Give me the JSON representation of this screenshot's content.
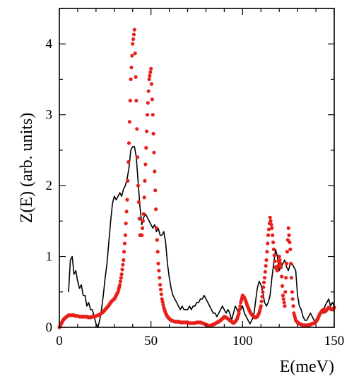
{
  "chart_data": {
    "type": "line",
    "title": "",
    "xlabel": "E(meV)",
    "ylabel": "Z(E) (arb. units)",
    "xlim": [
      0,
      150
    ],
    "ylim": [
      0,
      4.5
    ],
    "xticks": [
      0,
      50,
      100,
      150
    ],
    "yticks": [
      0,
      1,
      2,
      3,
      4
    ],
    "grid": false,
    "legend": "none",
    "series": [
      {
        "style": "line",
        "color": "#000000",
        "x": [
          5,
          6,
          7,
          8,
          9,
          10,
          11,
          12,
          13,
          14,
          15,
          16,
          17,
          18,
          19,
          20,
          21,
          22,
          23,
          24,
          25,
          26,
          27,
          28,
          29,
          30,
          31,
          32,
          33,
          34,
          35,
          36,
          37,
          38,
          39,
          40,
          41,
          42,
          43,
          44,
          45,
          46,
          47,
          48,
          49,
          50,
          51,
          52,
          53,
          54,
          55,
          56,
          57,
          58,
          59,
          60,
          61,
          62,
          63,
          64,
          65,
          66,
          67,
          68,
          69,
          70,
          71,
          72,
          73,
          74,
          75,
          76,
          77,
          78,
          79,
          80,
          81,
          82,
          83,
          84,
          85,
          86,
          87,
          88,
          89,
          90,
          91,
          92,
          93,
          94,
          95,
          96,
          97,
          98,
          99,
          100,
          101,
          102,
          103,
          104,
          105,
          106,
          107,
          108,
          109,
          110,
          111,
          112,
          113,
          114,
          115,
          116,
          117,
          118,
          119,
          120,
          121,
          122,
          123,
          124,
          125,
          126,
          127,
          128,
          129,
          130,
          131,
          132,
          133,
          134,
          135,
          136,
          137,
          138,
          139,
          140,
          141,
          142,
          143,
          144,
          145,
          146,
          147,
          148,
          149,
          150
        ],
        "y": [
          0.5,
          0.95,
          1.0,
          0.75,
          0.8,
          0.65,
          0.55,
          0.6,
          0.45,
          0.45,
          0.3,
          0.35,
          0.25,
          0.25,
          0.15,
          0.05,
          0.0,
          0.1,
          0.25,
          0.45,
          0.7,
          0.9,
          1.2,
          1.5,
          1.75,
          1.85,
          1.8,
          1.85,
          1.9,
          1.85,
          1.95,
          2.0,
          2.1,
          2.25,
          2.5,
          2.55,
          2.55,
          2.4,
          2.05,
          1.7,
          1.45,
          1.55,
          1.6,
          1.55,
          1.5,
          1.45,
          1.4,
          1.45,
          1.35,
          1.4,
          1.3,
          1.3,
          1.35,
          1.2,
          0.9,
          0.7,
          0.55,
          0.45,
          0.4,
          0.35,
          0.3,
          0.25,
          0.3,
          0.25,
          0.25,
          0.25,
          0.3,
          0.25,
          0.3,
          0.3,
          0.35,
          0.35,
          0.4,
          0.4,
          0.45,
          0.4,
          0.35,
          0.3,
          0.25,
          0.2,
          0.2,
          0.15,
          0.2,
          0.25,
          0.3,
          0.25,
          0.2,
          0.25,
          0.2,
          0.1,
          0.2,
          0.3,
          0.25,
          0.2,
          0.25,
          0.3,
          0.2,
          0.15,
          0.1,
          0.05,
          0.1,
          0.15,
          0.35,
          0.55,
          0.65,
          0.6,
          0.5,
          0.35,
          0.3,
          0.35,
          0.45,
          0.7,
          0.9,
          1.1,
          1.0,
          0.8,
          0.85,
          0.9,
          0.95,
          0.85,
          0.8,
          0.9,
          0.9,
          0.85,
          0.8,
          0.45,
          0.3,
          0.25,
          0.15,
          0.1,
          0.1,
          0.15,
          0.2,
          0.15,
          0.1,
          0.05,
          0.15,
          0.2,
          0.25,
          0.2,
          0.3,
          0.35,
          0.4,
          0.3,
          0.35,
          0.3
        ]
      },
      {
        "style": "dots",
        "color": "#e8201a",
        "x": [
          0,
          1,
          2,
          3,
          4,
          5,
          6,
          7,
          8,
          9,
          10,
          11,
          12,
          13,
          14,
          15,
          16,
          17,
          18,
          19,
          20,
          21,
          22,
          23,
          24,
          25,
          26,
          27,
          28,
          29,
          30,
          31,
          32,
          33,
          34,
          35,
          36,
          37,
          38,
          39,
          40,
          41,
          42,
          43,
          44,
          45,
          46,
          47,
          48,
          49,
          50,
          51,
          52,
          53,
          54,
          55,
          56,
          57,
          58,
          59,
          60,
          61,
          62,
          63,
          64,
          65,
          66,
          67,
          68,
          69,
          70,
          71,
          72,
          73,
          74,
          75,
          76,
          77,
          78,
          79,
          80,
          81,
          82,
          83,
          84,
          85,
          86,
          87,
          88,
          89,
          90,
          91,
          92,
          93,
          94,
          95,
          96,
          97,
          98,
          99,
          100,
          101,
          102,
          103,
          104,
          105,
          106,
          107,
          108,
          109,
          110,
          111,
          112,
          113,
          114,
          115,
          116,
          117,
          118,
          119,
          120,
          121,
          122,
          123,
          124,
          125,
          126,
          127,
          128,
          129,
          130,
          131,
          132,
          133,
          134,
          135,
          136,
          137,
          138,
          139,
          140,
          141,
          142,
          143,
          144,
          145,
          146,
          147,
          148,
          149,
          150
        ],
        "y": [
          0.0,
          0.05,
          0.1,
          0.13,
          0.15,
          0.17,
          0.17,
          0.17,
          0.17,
          0.16,
          0.16,
          0.15,
          0.15,
          0.15,
          0.15,
          0.15,
          0.14,
          0.14,
          0.15,
          0.15,
          0.16,
          0.17,
          0.18,
          0.2,
          0.22,
          0.25,
          0.28,
          0.31,
          0.35,
          0.38,
          0.4,
          0.45,
          0.5,
          0.6,
          0.75,
          0.95,
          1.3,
          1.8,
          2.6,
          3.5,
          4.0,
          4.2,
          3.2,
          2.0,
          1.3,
          1.3,
          1.6,
          2.3,
          3.0,
          3.5,
          3.65,
          3.0,
          2.2,
          1.4,
          0.9,
          0.6,
          0.4,
          0.28,
          0.2,
          0.15,
          0.12,
          0.1,
          0.09,
          0.08,
          0.08,
          0.08,
          0.07,
          0.07,
          0.07,
          0.07,
          0.07,
          0.06,
          0.06,
          0.06,
          0.06,
          0.07,
          0.07,
          0.07,
          0.06,
          0.05,
          0.04,
          0.03,
          0.02,
          0.03,
          0.04,
          0.05,
          0.07,
          0.08,
          0.1,
          0.12,
          0.15,
          0.14,
          0.12,
          0.1,
          0.08,
          0.06,
          0.08,
          0.12,
          0.2,
          0.35,
          0.45,
          0.42,
          0.35,
          0.28,
          0.22,
          0.18,
          0.15,
          0.14,
          0.15,
          0.2,
          0.3,
          0.5,
          0.7,
          0.95,
          1.3,
          1.55,
          1.4,
          1.1,
          0.85,
          0.8,
          1.0,
          0.85,
          0.45,
          0.3,
          0.9,
          1.4,
          1.1,
          0.5,
          0.2,
          0.1,
          0.07,
          0.05,
          0.04,
          0.03,
          0.03,
          0.03,
          0.03,
          0.04,
          0.05,
          0.06,
          0.08,
          0.12,
          0.18,
          0.22,
          0.25,
          0.22,
          0.25,
          0.28,
          0.26,
          0.25,
          0.28
        ]
      }
    ]
  }
}
